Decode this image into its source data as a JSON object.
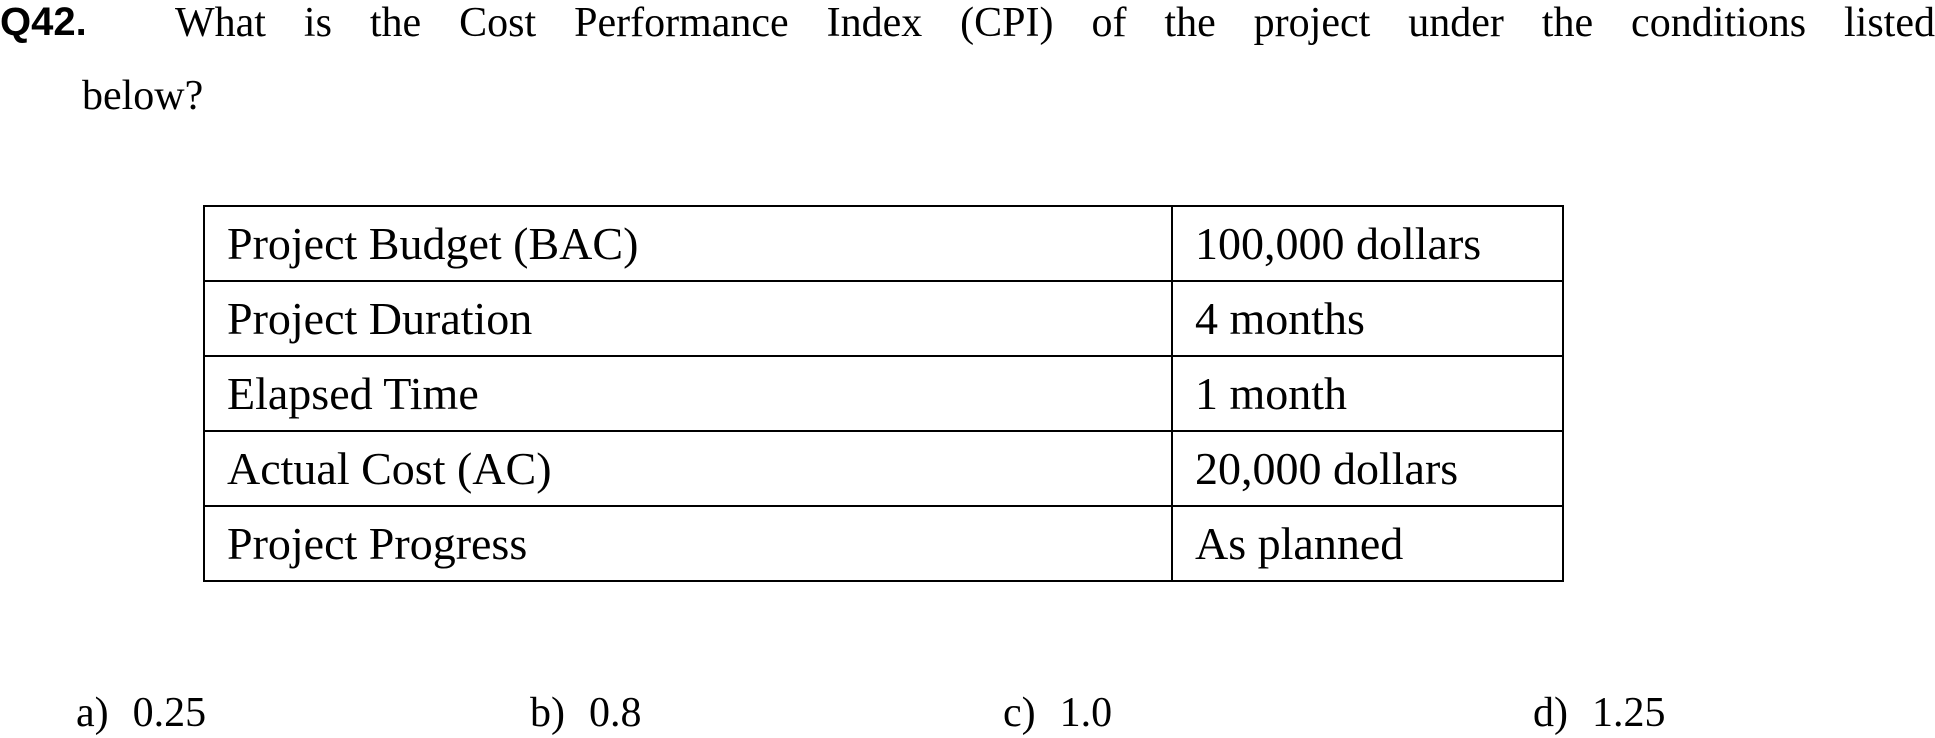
{
  "question": {
    "number": "Q42.",
    "line1": "What is the Cost Performance Index (CPI) of the project under the conditions listed",
    "line2": "below?"
  },
  "table": {
    "rows": [
      {
        "label": "Project Budget (BAC)",
        "value": "100,000 dollars"
      },
      {
        "label": "Project Duration",
        "value": "4 months"
      },
      {
        "label": "Elapsed Time",
        "value": "1 month"
      },
      {
        "label": "Actual Cost (AC)",
        "value": "20,000 dollars"
      },
      {
        "label": "Project Progress",
        "value": "As planned"
      }
    ]
  },
  "choices": [
    {
      "letter": "a)",
      "value": "0.25"
    },
    {
      "letter": "b)",
      "value": "0.8"
    },
    {
      "letter": "c)",
      "value": "1.0"
    },
    {
      "letter": "d)",
      "value": "1.25"
    }
  ]
}
